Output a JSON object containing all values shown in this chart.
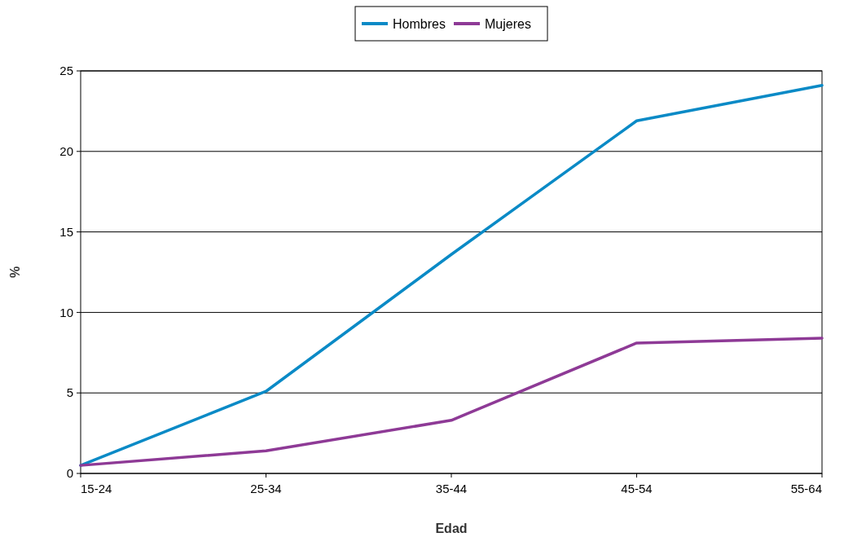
{
  "chart_data": {
    "type": "line",
    "xlabel": "Edad",
    "ylabel": "%",
    "categories": [
      "15-24",
      "25-34",
      "35-44",
      "45-54",
      "55-64"
    ],
    "series": [
      {
        "name": "Hombres",
        "color": "#0a8ac6",
        "values": [
          0.5,
          5.1,
          13.6,
          21.9,
          24.1
        ]
      },
      {
        "name": "Mujeres",
        "color": "#8e3a96",
        "values": [
          0.5,
          1.4,
          3.3,
          8.1,
          8.4
        ]
      }
    ],
    "ylim": [
      0,
      25
    ],
    "yticks": [
      0,
      5,
      10,
      15,
      20,
      25
    ],
    "grid": "y",
    "legend": "top",
    "marker": "none",
    "line_style": "solid"
  }
}
